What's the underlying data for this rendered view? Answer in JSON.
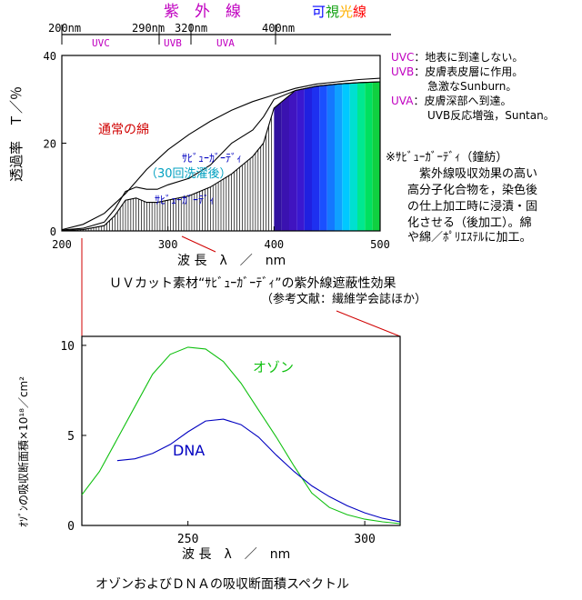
{
  "colors": {
    "purple": "#c000c0",
    "blue": "#0000c0",
    "red": "#d00000",
    "cyan": "#00a0c0",
    "green": "#10c010",
    "black": "#000000"
  },
  "spectrum_bar": {
    "uv_label": "紫　外　線",
    "vis_label_chars": [
      "可",
      "視",
      "光",
      "線"
    ],
    "vis_label_colors": [
      "#0000ff",
      "#10a010",
      "#ffb000",
      "#ff0000"
    ],
    "ticks": [
      {
        "nm": "200",
        "text": "200nm"
      },
      {
        "nm": "290",
        "text": "290nm"
      },
      {
        "nm": "320",
        "text": "320nm"
      },
      {
        "nm": "400",
        "text": "400nm"
      }
    ],
    "bands": [
      "UVC",
      "UVB",
      "UVA"
    ]
  },
  "notes": {
    "uvc": {
      "key": "UVC",
      "text": "：地表に到達しない。"
    },
    "uvb": {
      "key": "UVB",
      "text": "：皮膚表皮層に作用。",
      "line2": "急激なSunburn。"
    },
    "uva": {
      "key": "UVA",
      "text": "：皮膚深部へ到達。",
      "line2": "UVB反応増強，Suntan。"
    },
    "sabuguard": [
      "※ｻﾋﾞｭｰｶﾞｰﾃﾞｨ（鐘紡）",
      "紫外線吸収効果の高い",
      "高分子化合物を，染色後",
      "の仕上加工時に浸漬・固",
      "化させる（後加工）。綿",
      "や綿／ﾎﾟﾘｴｽﾃﾙに加工。"
    ]
  },
  "chart_data": [
    {
      "type": "line",
      "title": "ＵＶカット素材“ｻﾋﾞｭｰｶﾞｰﾃﾞｨ”の紫外線遮蔽性効果",
      "subtitle": "（参考文献：繊維学会誌ほか）",
      "ylabel": "透過率　Ｔ／％",
      "xlabel": "波 長　λ　／　nm",
      "xlim": [
        200,
        500
      ],
      "ylim": [
        0,
        40
      ],
      "x_ticks": [
        "200",
        "300",
        "400",
        "500"
      ],
      "y_ticks": [
        "0",
        "20",
        "40"
      ],
      "series": [
        {
          "name": "通常の綿",
          "color": "#000000",
          "x": [
            200,
            220,
            240,
            260,
            280,
            300,
            320,
            340,
            360,
            380,
            400,
            420,
            440,
            460,
            480,
            500
          ],
          "y": [
            0.3,
            1.5,
            4,
            8.5,
            14,
            18.5,
            22,
            25,
            27.5,
            29.5,
            31,
            32.5,
            33.5,
            34,
            34.5,
            34.8
          ]
        },
        {
          "name": "ｻﾋﾞｭｰｶﾞｰﾃﾞｨ（30回洗濯後）",
          "color": "#000000",
          "x": [
            200,
            220,
            240,
            250,
            260,
            270,
            280,
            290,
            300,
            320,
            340,
            360,
            380,
            390,
            400,
            420,
            440,
            460,
            480,
            500
          ],
          "y": [
            0.2,
            0.6,
            2,
            5,
            9,
            10,
            9.5,
            9.5,
            10.5,
            12,
            15,
            20,
            23,
            26,
            30,
            32,
            33,
            33.5,
            33.8,
            34
          ]
        },
        {
          "name": "ｻﾋﾞｭｰｶﾞｰﾃﾞｨ",
          "color": "#000000",
          "x": [
            200,
            220,
            240,
            250,
            260,
            270,
            280,
            290,
            300,
            320,
            340,
            360,
            380,
            390,
            400,
            420,
            440,
            460,
            480,
            500
          ],
          "y": [
            0.1,
            0.3,
            1.2,
            3.5,
            7,
            7.5,
            6.5,
            6.5,
            7,
            8,
            10,
            13,
            17,
            20,
            28,
            32,
            33,
            33.5,
            33.8,
            34
          ]
        }
      ],
      "labels": {
        "cotton": "通常の綿",
        "washed_line1": "ｻﾋﾞｭｰｶﾞｰﾃﾞｨ",
        "washed_line2": "（30回洗濯後）",
        "sabu": "ｻﾋﾞｭｰｶﾞｰﾃﾞｨ"
      }
    },
    {
      "type": "line",
      "title": "オゾンおよびＤＮＡの吸収断面積スペクトル",
      "ylabel": "ｵｿﾞﾝの吸収断面積×10¹⁸／cm²",
      "xlabel": "波 長　λ　／　nm",
      "xlim": [
        220,
        310
      ],
      "ylim": [
        0,
        10.5
      ],
      "x_ticks": [
        "250",
        "300"
      ],
      "y_ticks": [
        "0",
        "5",
        "10"
      ],
      "series": [
        {
          "name": "オゾン",
          "color": "#10c010",
          "x": [
            220,
            225,
            230,
            235,
            240,
            245,
            250,
            255,
            260,
            265,
            270,
            275,
            280,
            285,
            290,
            295,
            300,
            305,
            310
          ],
          "y": [
            1.7,
            3.0,
            4.8,
            6.6,
            8.4,
            9.5,
            9.9,
            9.8,
            9.1,
            7.9,
            6.4,
            4.9,
            3.3,
            1.8,
            1.0,
            0.6,
            0.35,
            0.2,
            0.1
          ]
        },
        {
          "name": "DNA",
          "color": "#0000c0",
          "x": [
            230,
            235,
            240,
            245,
            250,
            255,
            260,
            265,
            270,
            275,
            280,
            285,
            290,
            295,
            300,
            305,
            310
          ],
          "y": [
            3.6,
            3.7,
            4.0,
            4.5,
            5.2,
            5.8,
            5.9,
            5.6,
            4.9,
            3.9,
            3.0,
            2.2,
            1.6,
            1.1,
            0.7,
            0.4,
            0.2
          ]
        }
      ],
      "labels": {
        "ozone": "オゾン",
        "dna": "DNA"
      }
    }
  ]
}
